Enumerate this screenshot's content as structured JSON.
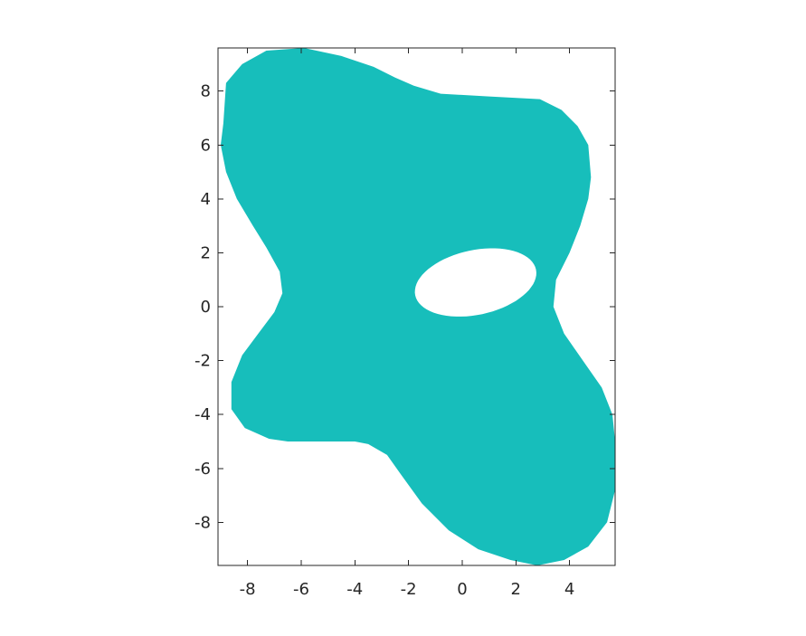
{
  "chart_data": {
    "type": "heatmap",
    "title": "",
    "xlabel": "",
    "ylabel": "",
    "xlim": [
      -9.1,
      5.7
    ],
    "ylim": [
      -9.6,
      9.6
    ],
    "grid": false,
    "legend": "none",
    "x_ticks": [
      -8,
      -6,
      -4,
      -2,
      0,
      2,
      4
    ],
    "y_ticks": [
      -8,
      -6,
      -4,
      -2,
      0,
      2,
      4,
      6,
      8
    ],
    "x_tick_labels": [
      "-8",
      "-6",
      "-4",
      "-2",
      "0",
      "2",
      "4"
    ],
    "y_tick_labels": [
      "-8",
      "-6",
      "-4",
      "-2",
      "0",
      "2",
      "4",
      "6",
      "8"
    ],
    "fill_color": "#17bebb",
    "background_color": "#ffffff",
    "region": {
      "description": "filled region with a single elliptical hole",
      "outer_boundary": [
        [
          -8.9,
          6.8
        ],
        [
          -8.8,
          8.3
        ],
        [
          -8.2,
          9.0
        ],
        [
          -7.3,
          9.5
        ],
        [
          -5.9,
          9.6
        ],
        [
          -4.5,
          9.3
        ],
        [
          -3.3,
          8.9
        ],
        [
          -2.5,
          8.5
        ],
        [
          -1.8,
          8.2
        ],
        [
          -0.8,
          7.9
        ],
        [
          1.0,
          7.8
        ],
        [
          2.9,
          7.7
        ],
        [
          3.7,
          7.3
        ],
        [
          4.3,
          6.7
        ],
        [
          4.7,
          6.0
        ],
        [
          4.8,
          4.8
        ],
        [
          4.7,
          4.0
        ],
        [
          4.4,
          3.0
        ],
        [
          4.0,
          2.0
        ],
        [
          3.5,
          1.0
        ],
        [
          3.4,
          0.0
        ],
        [
          3.8,
          -1.0
        ],
        [
          4.5,
          -2.0
        ],
        [
          5.2,
          -3.0
        ],
        [
          5.6,
          -4.0
        ],
        [
          5.7,
          -5.0
        ],
        [
          5.7,
          -6.8
        ],
        [
          5.4,
          -8.0
        ],
        [
          4.7,
          -8.9
        ],
        [
          3.8,
          -9.4
        ],
        [
          2.8,
          -9.6
        ],
        [
          1.8,
          -9.4
        ],
        [
          0.6,
          -9.0
        ],
        [
          -0.5,
          -8.3
        ],
        [
          -1.5,
          -7.3
        ],
        [
          -2.3,
          -6.2
        ],
        [
          -2.8,
          -5.5
        ],
        [
          -3.5,
          -5.1
        ],
        [
          -4.0,
          -5.0
        ],
        [
          -4.5,
          -5.0
        ],
        [
          -6.5,
          -5.0
        ],
        [
          -7.2,
          -4.9
        ],
        [
          -8.1,
          -4.5
        ],
        [
          -8.6,
          -3.8
        ],
        [
          -8.6,
          -2.8
        ],
        [
          -8.2,
          -1.8
        ],
        [
          -7.6,
          -1.0
        ],
        [
          -7.0,
          -0.2
        ],
        [
          -6.7,
          0.5
        ],
        [
          -6.8,
          1.3
        ],
        [
          -7.3,
          2.2
        ],
        [
          -7.8,
          3.0
        ],
        [
          -8.4,
          4.0
        ],
        [
          -8.8,
          5.0
        ],
        [
          -9.0,
          6.0
        ],
        [
          -8.9,
          6.8
        ]
      ],
      "hole": {
        "center": [
          0.5,
          0.9
        ],
        "semi_axis_x": 2.3,
        "semi_axis_y": 1.2,
        "rotation_deg": 12
      }
    }
  }
}
